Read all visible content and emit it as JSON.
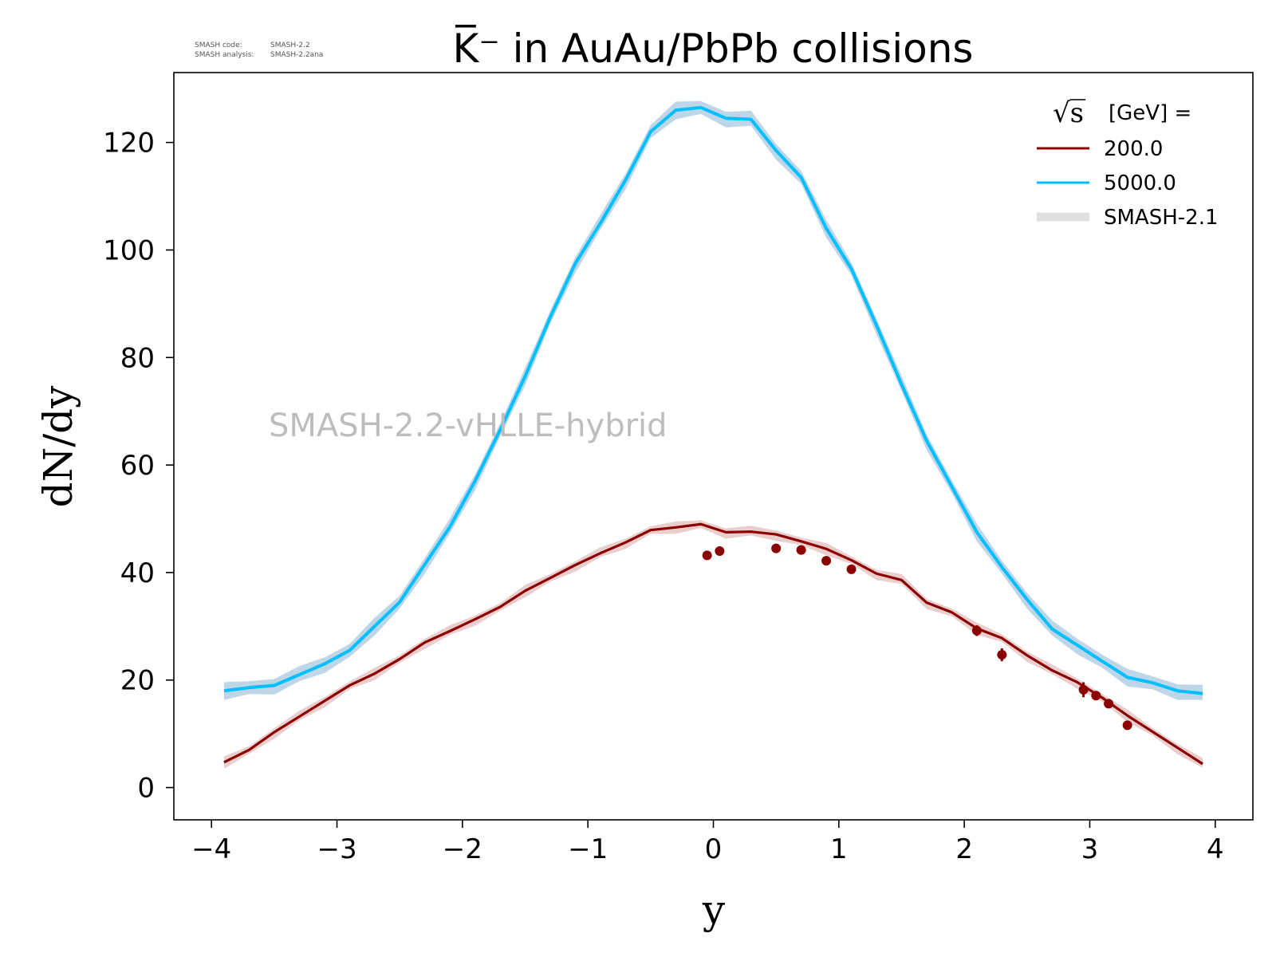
{
  "meta": {
    "code_label": "SMASH code:",
    "code_value": "SMASH-2.2",
    "analysis_label": "SMASH analysis:",
    "analysis_value": "SMASH-2.2ana"
  },
  "watermark": "SMASH-2.2-vHLLE-hybrid",
  "colors": {
    "series_200": "#8b0000",
    "series_5000": "#00bfff",
    "band_200": "#e8c8c8",
    "band_5000": "#b8d2e6",
    "legend_band": "#e0e0e0"
  },
  "chart_data": {
    "type": "line",
    "title": "K̅⁻ in AuAu/PbPb collisions",
    "xlabel": "y",
    "ylabel": "dN/dy",
    "xlim": [
      -4.3,
      4.3
    ],
    "ylim": [
      -6,
      133
    ],
    "xticks": [
      -4,
      -3,
      -2,
      -1,
      0,
      1,
      2,
      3,
      4
    ],
    "xtick_labels": [
      "−4",
      "−3",
      "−2",
      "−1",
      "0",
      "1",
      "2",
      "3",
      "4"
    ],
    "yticks": [
      0,
      20,
      40,
      60,
      80,
      100,
      120
    ],
    "ytick_labels": [
      "0",
      "20",
      "40",
      "60",
      "80",
      "100",
      "120"
    ],
    "grid": false,
    "legend": {
      "placement": "top-right",
      "title": "[GeV] =",
      "title_prefix": "√s",
      "entries": [
        "200.0",
        "5000.0",
        "SMASH-2.1"
      ]
    },
    "series": [
      {
        "name": "200.0",
        "color": "#8b0000",
        "x": [
          -3.9,
          -3.7,
          -3.5,
          -3.3,
          -3.1,
          -2.9,
          -2.7,
          -2.5,
          -2.3,
          -2.1,
          -1.9,
          -1.7,
          -1.5,
          -1.3,
          -1.1,
          -0.9,
          -0.7,
          -0.5,
          -0.3,
          -0.1,
          0.1,
          0.3,
          0.5,
          0.7,
          0.9,
          1.1,
          1.3,
          1.5,
          1.7,
          1.9,
          2.1,
          2.3,
          2.5,
          2.7,
          2.9,
          3.1,
          3.3,
          3.5,
          3.7,
          3.9
        ],
        "y": [
          4.7,
          7.0,
          10.3,
          13.2,
          16.1,
          19.0,
          21.2,
          23.9,
          27.0,
          29.1,
          31.3,
          33.6,
          36.6,
          39.0,
          41.4,
          43.6,
          45.6,
          47.9,
          48.4,
          49.0,
          47.5,
          47.6,
          47.1,
          45.8,
          44.4,
          42.3,
          39.8,
          38.6,
          34.4,
          32.6,
          29.6,
          27.8,
          24.6,
          21.8,
          19.6,
          16.7,
          13.4,
          10.4,
          7.4,
          4.4
        ]
      },
      {
        "name": "5000.0",
        "color": "#00bfff",
        "x": [
          -3.9,
          -3.7,
          -3.5,
          -3.3,
          -3.1,
          -2.9,
          -2.7,
          -2.5,
          -2.3,
          -2.1,
          -1.9,
          -1.7,
          -1.5,
          -1.3,
          -1.1,
          -0.9,
          -0.7,
          -0.5,
          -0.3,
          -0.1,
          0.1,
          0.3,
          0.5,
          0.7,
          0.9,
          1.1,
          1.3,
          1.5,
          1.7,
          1.9,
          2.1,
          2.3,
          2.5,
          2.7,
          2.9,
          3.1,
          3.3,
          3.5,
          3.7,
          3.9
        ],
        "y": [
          18.0,
          18.6,
          19.0,
          21.0,
          23.0,
          25.5,
          30.0,
          34.5,
          41.5,
          48.5,
          57.0,
          66.5,
          76.5,
          87.5,
          97.5,
          105.0,
          113.0,
          122.0,
          126.0,
          126.5,
          124.5,
          124.3,
          118.5,
          113.5,
          104.0,
          96.5,
          86.0,
          75.0,
          64.5,
          56.0,
          47.5,
          41.0,
          35.0,
          29.5,
          26.5,
          23.5,
          20.5,
          19.5,
          18.0,
          17.5
        ]
      }
    ],
    "measured": {
      "name": "200.0",
      "color": "#8b0000",
      "x": [
        -0.05,
        0.05,
        0.5,
        0.7,
        0.9,
        1.1,
        2.1,
        2.3,
        2.95,
        3.05,
        3.15,
        3.3
      ],
      "y": [
        43.2,
        44.0,
        44.5,
        44.2,
        42.2,
        40.6,
        29.2,
        24.7,
        18.2,
        17.1,
        15.6,
        11.6
      ]
    }
  }
}
